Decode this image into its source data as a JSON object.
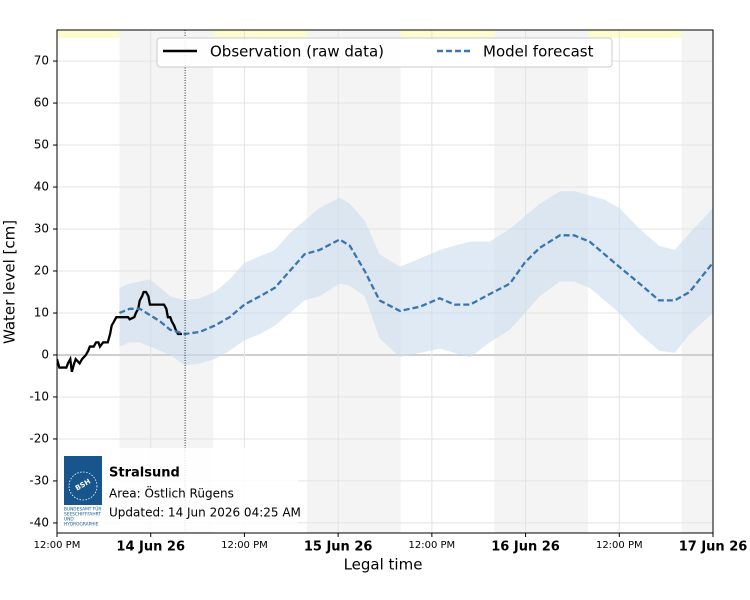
{
  "chart_data": {
    "type": "line",
    "xlabel": "Legal time",
    "ylabel": "Water level [cm]",
    "xlim": [
      0,
      84
    ],
    "ylim": [
      -42.4,
      77.4
    ],
    "xticks": [
      {
        "value": 0,
        "label": "12:00 PM"
      },
      {
        "value": 12,
        "label": "14 Jun 26"
      },
      {
        "value": 24,
        "label": "12:00 PM"
      },
      {
        "value": 36,
        "label": "15 Jun 26"
      },
      {
        "value": 48,
        "label": "12:00 PM"
      },
      {
        "value": 60,
        "label": "16 Jun 26"
      },
      {
        "value": 72,
        "label": "12:00 PM"
      },
      {
        "value": 84,
        "label": "17 Jun 26"
      }
    ],
    "yticks": [
      -40,
      -30,
      -20,
      -10,
      0,
      10,
      20,
      30,
      40,
      50,
      60,
      70
    ],
    "grid": true,
    "legend": "top",
    "shaded_x": [
      [
        8,
        20
      ],
      [
        32,
        44
      ],
      [
        56,
        68
      ],
      [
        80,
        84
      ]
    ],
    "now_x": 16.4,
    "series": [
      {
        "name": "Observation (raw data)",
        "color": "#000000",
        "x": [
          0,
          0.3,
          1.2,
          1.4,
          1.7,
          1.9,
          2.2,
          2.4,
          2.9,
          3.2,
          3.7,
          4.0,
          4.2,
          4.7,
          5.0,
          5.3,
          5.5,
          5.9,
          6.5,
          6.8,
          7.0,
          7.3,
          7.6,
          8.1,
          8.6,
          9.1,
          9.3,
          9.9,
          10.1,
          10.4,
          10.6,
          10.9,
          11.1,
          11.4,
          11.7,
          11.9,
          12.4,
          13.2,
          13.7,
          14.0,
          14.2,
          14.5,
          14.7,
          15.0,
          15.2,
          15.5,
          16.0
        ],
        "values": [
          -1,
          -3,
          -3,
          -2,
          -1,
          -4,
          -2,
          -1,
          -2,
          -1,
          0,
          1,
          2,
          2,
          3,
          3,
          2,
          3,
          3,
          5,
          7,
          8,
          9,
          9,
          9,
          9,
          8.5,
          9,
          10,
          11,
          13,
          14,
          15,
          15,
          14,
          12,
          12,
          12,
          12,
          11,
          9,
          9,
          8,
          7,
          6,
          5,
          5
        ]
      },
      {
        "name": "Model forecast",
        "color": "#3a75b0",
        "dashed": true,
        "band_color": "#c9dcee",
        "x": [
          8,
          9.3,
          10.6,
          11.9,
          13.2,
          14.5,
          16.4,
          18.3,
          20.2,
          22.1,
          24,
          26,
          27.9,
          29.8,
          31.7,
          33.6,
          36.2,
          37.5,
          39.4,
          41.3,
          43.9,
          46.5,
          49,
          50.9,
          52.9,
          55.4,
          58,
          59.9,
          61.8,
          64.4,
          66.2,
          68.2,
          70.1,
          72,
          74.6,
          77.1,
          79.1,
          81,
          84
        ],
        "values": [
          10,
          11,
          11,
          9.5,
          8,
          6,
          5,
          5.5,
          7,
          9,
          12,
          14,
          16,
          20,
          24,
          25,
          27.5,
          26,
          20,
          13,
          10.5,
          11.5,
          13.5,
          12,
          12,
          14.5,
          17,
          22,
          25.5,
          28.5,
          28.5,
          27,
          24,
          21,
          17,
          13,
          13,
          15,
          22
        ],
        "upper": [
          16,
          17,
          17.5,
          18,
          16,
          14,
          13,
          13.5,
          15,
          18,
          22,
          23.5,
          25,
          29,
          32,
          35,
          37.5,
          36,
          32,
          24,
          21,
          23,
          25,
          26,
          27,
          27,
          30,
          33,
          36,
          39,
          39,
          38,
          37,
          35,
          30,
          26,
          25,
          29,
          35
        ],
        "lower": [
          2,
          3,
          3,
          2,
          1,
          0,
          -2.5,
          -2,
          -1,
          1,
          3.5,
          5,
          7,
          10,
          13,
          14,
          17,
          16.5,
          14,
          4,
          -0.5,
          0.5,
          1.5,
          0.5,
          -0.5,
          3,
          6,
          10,
          14,
          17.5,
          17.5,
          16,
          13,
          10,
          5,
          1,
          0.5,
          5,
          10
        ]
      }
    ],
    "station": "Stralsund",
    "area": "Area: Östlich Rügens",
    "updated": "Updated: 14 Jun 2026 04:25 AM",
    "logo": {
      "title": "BSH",
      "lines": [
        "BUNDESAMT FÜR",
        "SEESCHIFFFAHRT",
        "UND",
        "HYDROGRAPHIE"
      ]
    }
  }
}
